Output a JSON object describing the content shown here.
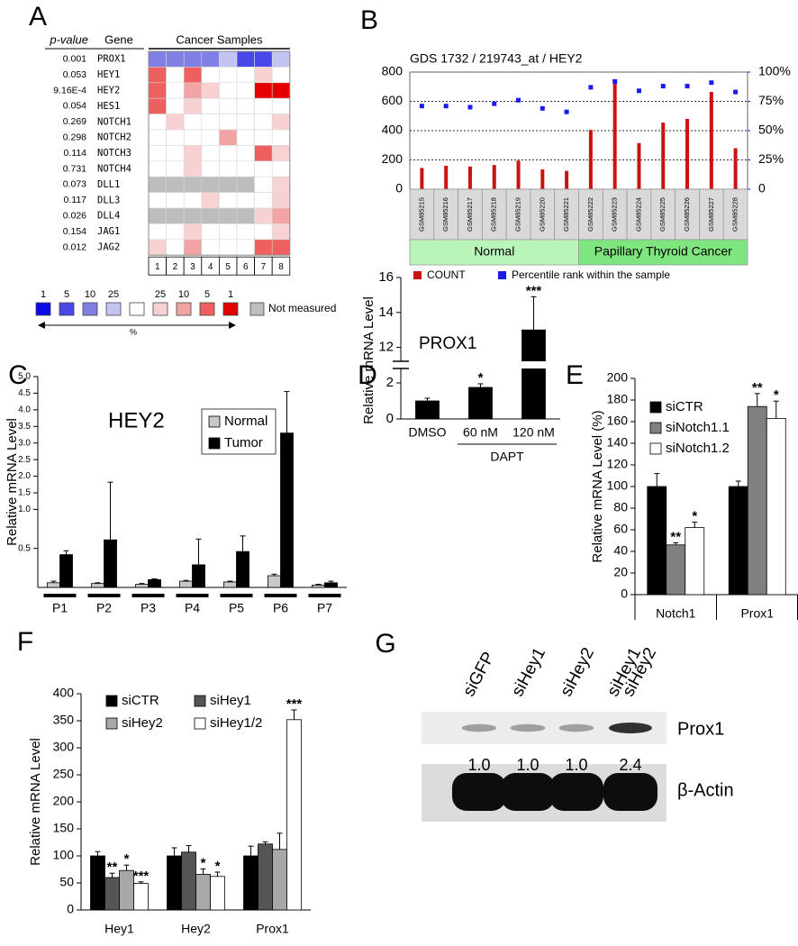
{
  "chart_data": [
    {
      "type": "heatmap",
      "panel": "A",
      "columns": [
        "p-value",
        "Gene",
        "Cancer Samples"
      ],
      "samples": [
        1,
        2,
        3,
        4,
        5,
        6,
        7,
        8
      ],
      "rows": [
        {
          "p_value": "0.001",
          "gene": "PROX1",
          "cells": [
            2,
            2,
            2,
            2,
            3,
            1,
            1,
            3
          ]
        },
        {
          "p_value": "0.053",
          "gene": "HEY1",
          "cells": [
            7,
            4,
            7,
            4,
            4,
            4,
            5,
            4
          ]
        },
        {
          "p_value": "9.16E-4",
          "gene": "HEY2",
          "cells": [
            7,
            4,
            6,
            5,
            4,
            4,
            8,
            8
          ]
        },
        {
          "p_value": "0.054",
          "gene": "HES1",
          "cells": [
            7,
            4,
            5,
            4,
            4,
            4,
            4,
            4
          ]
        },
        {
          "p_value": "0.269",
          "gene": "NOTCH1",
          "cells": [
            4,
            5,
            4,
            4,
            4,
            4,
            4,
            5
          ]
        },
        {
          "p_value": "0.298",
          "gene": "NOTCH2",
          "cells": [
            4,
            4,
            4,
            4,
            6,
            4,
            4,
            4
          ]
        },
        {
          "p_value": "0.114",
          "gene": "NOTCH3",
          "cells": [
            4,
            4,
            5,
            4,
            4,
            4,
            7,
            5
          ]
        },
        {
          "p_value": "0.731",
          "gene": "NOTCH4",
          "cells": [
            4,
            4,
            5,
            4,
            4,
            4,
            4,
            4
          ]
        },
        {
          "p_value": "0.073",
          "gene": "DLL1",
          "cells": [
            null,
            null,
            null,
            null,
            null,
            null,
            4,
            5
          ]
        },
        {
          "p_value": "0.117",
          "gene": "DLL3",
          "cells": [
            4,
            4,
            4,
            5,
            4,
            4,
            4,
            5
          ]
        },
        {
          "p_value": "0.026",
          "gene": "DLL4",
          "cells": [
            null,
            null,
            null,
            null,
            null,
            null,
            5,
            6
          ]
        },
        {
          "p_value": "0.154",
          "gene": "JAG1",
          "cells": [
            4,
            4,
            5,
            4,
            4,
            4,
            4,
            5
          ]
        },
        {
          "p_value": "0.012",
          "gene": "JAG2",
          "cells": [
            5,
            4,
            6,
            4,
            4,
            4,
            7,
            7
          ]
        }
      ],
      "scale": {
        "labels": [
          "1",
          "5",
          "10",
          "25",
          null,
          "25",
          "10",
          "5",
          "1"
        ],
        "colors": [
          "#0a0ae6",
          "#4848e8",
          "#7f7fe6",
          "#c4c4f2",
          "#ffffff",
          "#f8d2d2",
          "#f2a4a4",
          "#ee6060",
          "#e40000"
        ]
      },
      "scale_unit": "%",
      "missing_label": "Not measured",
      "missing_color": "#bdbdbd"
    },
    {
      "type": "bar",
      "panel": "B",
      "title": "GDS 1732 / 219743_at / HEY2",
      "categories": [
        "GSM85215",
        "GSM85216",
        "GSM85217",
        "GSM85218",
        "GSM85219",
        "GSM85220",
        "GSM85221",
        "GSM85222",
        "GSM85223",
        "GSM85224",
        "GSM85225",
        "GSM85226",
        "GSM85227",
        "GSM85228"
      ],
      "category_groups": [
        "Normal",
        "Normal",
        "Normal",
        "Normal",
        "Normal",
        "Normal",
        "Normal",
        "Papillary Thyroid Cancer",
        "Papillary Thyroid Cancer",
        "Papillary Thyroid Cancer",
        "Papillary Thyroid Cancer",
        "Papillary Thyroid Cancer",
        "Papillary Thyroid Cancer",
        "Papillary Thyroid Cancer"
      ],
      "category_group_colors": [
        "#b9f5b9",
        "#7fe57f"
      ],
      "series": [
        {
          "name": "COUNT",
          "color": "#cc1111",
          "values": [
            145,
            160,
            155,
            165,
            195,
            135,
            125,
            405,
            740,
            315,
            455,
            480,
            665,
            280
          ]
        },
        {
          "name": "Percentile rank within the sample",
          "color": "#1a1aee",
          "axis": "y2",
          "values": [
            71,
            71,
            70,
            73,
            76,
            69,
            66,
            87,
            92,
            84,
            88,
            88,
            91,
            83
          ]
        }
      ],
      "ylim": [
        0,
        800
      ],
      "yticks": [
        0,
        200,
        400,
        600,
        800
      ],
      "y2lim": [
        0,
        100
      ],
      "y2ticks": [
        0,
        {
          "value": 25,
          "label": "25%"
        },
        {
          "value": 50,
          "label": "50%"
        },
        {
          "value": 75,
          "label": "75%"
        },
        {
          "value": 100,
          "label": "100%"
        }
      ],
      "grid": true
    },
    {
      "type": "bar",
      "panel": "C",
      "title": "HEY2",
      "y_label": "Relative mRNA Level",
      "categories": [
        "P1",
        "P2",
        "P3",
        "P4",
        "P5",
        "P6",
        "P7"
      ],
      "series": [
        {
          "name": "Normal",
          "color": "#c8c8c8",
          "values": [
            0.06,
            0.05,
            0.04,
            0.08,
            0.07,
            0.15,
            0.03
          ],
          "errors": [
            0.02,
            0.01,
            0.01,
            0.01,
            0.01,
            0.02,
            0.01
          ]
        },
        {
          "name": "Tumor",
          "color": "#000000",
          "values": [
            0.42,
            0.61,
            0.1,
            0.29,
            0.46,
            3.3,
            0.06
          ],
          "errors": [
            0.05,
            1.21,
            0.01,
            0.33,
            0.2,
            1.25,
            0.02
          ]
        }
      ],
      "ylim": [
        0,
        5
      ],
      "axis_break": [
        1,
        1
      ],
      "yticks": [
        0.5,
        {
          "value": 1,
          "label": "1.0"
        },
        1.5,
        {
          "value": 2,
          "label": "2.0"
        },
        2.5,
        {
          "value": 3,
          "label": "3.0"
        },
        3.5,
        {
          "value": 4,
          "label": "4.0"
        },
        4.5,
        {
          "value": 5,
          "label": "5.0"
        }
      ],
      "legend": "upper right"
    },
    {
      "type": "bar",
      "panel": "D",
      "title": "PROX1",
      "y_label": "Relative mRNA Level",
      "categories": [
        "DMSO",
        "60 nM",
        "120 nM"
      ],
      "category_groups": [
        null,
        "DAPT",
        "DAPT"
      ],
      "series": [
        {
          "color": "#000000",
          "values": [
            1,
            1.75,
            13
          ],
          "errors": [
            0.15,
            0.2,
            1.9
          ],
          "stars": [
            null,
            "*",
            "***"
          ]
        }
      ],
      "ylim": [
        0,
        16
      ],
      "axis_break": [
        3,
        11
      ],
      "yticks": [
        0,
        2,
        12,
        14,
        16
      ]
    },
    {
      "type": "bar",
      "panel": "E",
      "y_label": "Relative mRNA Level (%)",
      "categories": [
        "Notch1",
        "Prox1"
      ],
      "series": [
        {
          "name": "siCTR",
          "color": "#000000",
          "values": [
            100,
            100
          ],
          "errors": [
            12,
            5
          ],
          "stars": [
            null,
            null
          ]
        },
        {
          "name": "siNotch1.1",
          "color": "#808080",
          "values": [
            46,
            174
          ],
          "errors": [
            2,
            12
          ],
          "stars": [
            "**",
            "**"
          ]
        },
        {
          "name": "siNotch1.2",
          "color": "#ffffff",
          "values": [
            62,
            163
          ],
          "errors": [
            5,
            16
          ],
          "stars": [
            "*",
            "*"
          ]
        }
      ],
      "ylim": [
        0,
        200
      ],
      "yticks": [
        0,
        20,
        40,
        60,
        80,
        100,
        120,
        140,
        160,
        180,
        200
      ],
      "legend": "upper left"
    },
    {
      "type": "bar",
      "panel": "F",
      "y_label": "Relative mRNA Level",
      "categories": [
        "Hey1",
        "Hey2",
        "Prox1"
      ],
      "series": [
        {
          "name": "siCTR",
          "color": "#000000",
          "values": [
            100,
            100,
            100
          ],
          "errors": [
            8,
            15,
            18
          ],
          "stars": [
            null,
            null,
            null
          ]
        },
        {
          "name": "siHey1",
          "color": "#555555",
          "values": [
            60,
            107,
            122
          ],
          "errors": [
            8,
            12,
            4
          ],
          "stars": [
            "**",
            null,
            null
          ]
        },
        {
          "name": "siHey2",
          "color": "#a8a8a8",
          "values": [
            73,
            66,
            112
          ],
          "errors": [
            10,
            10,
            30
          ],
          "stars": [
            "*",
            "*",
            null
          ]
        },
        {
          "name": "siHey1/2",
          "color": "#ffffff",
          "values": [
            49,
            62,
            352
          ],
          "errors": [
            3,
            8,
            18
          ],
          "stars": [
            "***",
            "*",
            "***"
          ]
        }
      ],
      "ylim": [
        0,
        400
      ],
      "yticks": [
        0,
        50,
        100,
        150,
        200,
        250,
        300,
        350,
        400
      ],
      "legend": "upper left"
    },
    {
      "type": "blot",
      "panel": "G",
      "lanes": [
        [
          "siGFP"
        ],
        [
          "siHey1"
        ],
        [
          "siHey2"
        ],
        [
          "siHey1",
          "siHey2"
        ]
      ],
      "bands": [
        {
          "name": "Prox1",
          "values": [
            1.0,
            1.0,
            1.0,
            2.4
          ],
          "value_labels": [
            "1.0",
            "1.0",
            "1.0",
            "2.4"
          ]
        },
        {
          "name": "β-Actin"
        }
      ]
    }
  ]
}
